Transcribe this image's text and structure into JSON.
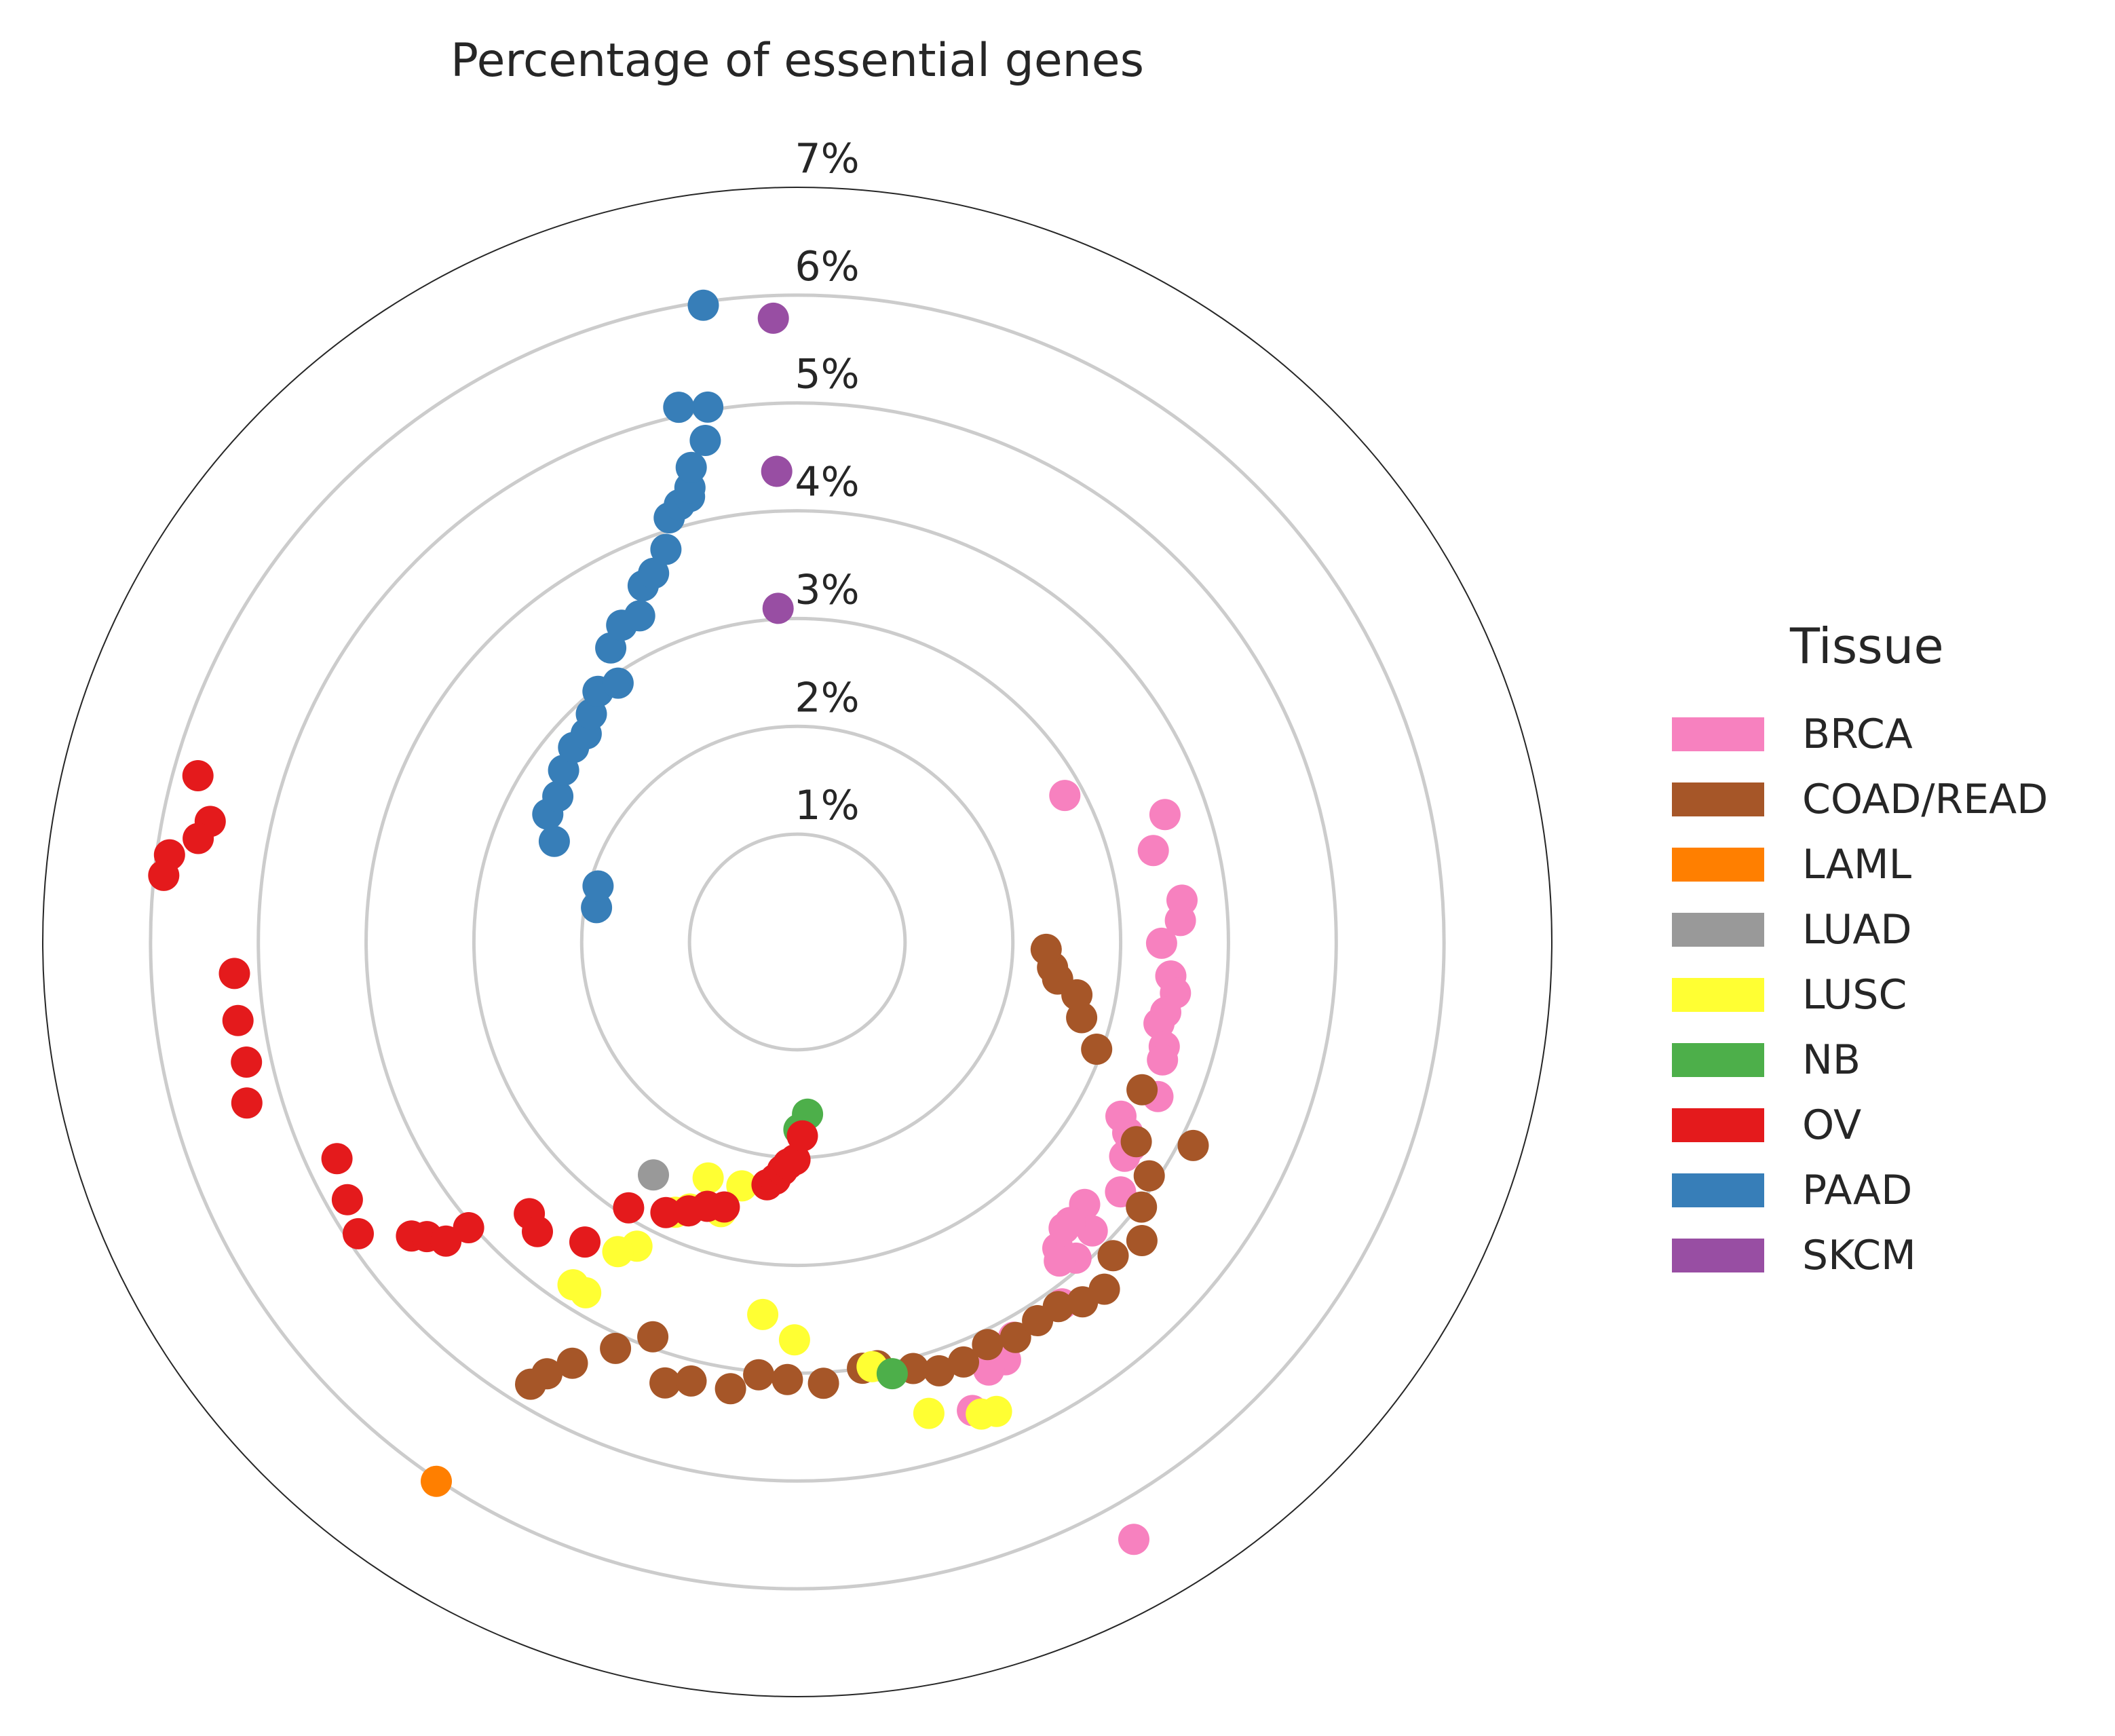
{
  "chart_data": {
    "type": "scatter",
    "projection": "polar",
    "title": "Percentage of essential genes",
    "r_ticks": [
      "1%",
      "2%",
      "3%",
      "4%",
      "5%",
      "6%",
      "7%"
    ],
    "r_max": 7,
    "grid": true,
    "legend": {
      "title": "Tissue",
      "placement": "right",
      "entries": [
        "BRCA",
        "COAD/READ",
        "LAML",
        "LUAD",
        "LUSC",
        "NB",
        "OV",
        "PAAD",
        "SKCM"
      ]
    },
    "colors": {
      "BRCA": "#f781bf",
      "COAD/READ": "#a65628",
      "LAML": "#ff7f00",
      "LUAD": "#999999",
      "LUSC": "#ffff33",
      "NB": "#4daf4a",
      "OV": "#e41a1c",
      "PAAD": "#377eb8",
      "SKCM": "#984ea3"
    },
    "series": [
      {
        "name": "BRCA",
        "theta_deg": [
          61.3,
          70.9,
          75.6,
          83.8,
          86.8,
          90.2,
          95.2,
          97.7,
          100.8,
          102.7,
          105.9,
          107.9,
          113.2,
          118.3,
          120.0,
          121.5,
          123.2,
          127.7,
          132.4,
          134.4,
          135.8,
          138.6,
          139.6,
          140.6,
          137.0,
          143.8,
          151.3,
          153.5,
          155.9,
          159.5,
          150.6
        ],
        "r": [
          2.83,
          3.61,
          3.41,
          3.59,
          3.56,
          3.38,
          3.48,
          3.54,
          3.48,
          3.44,
          3.54,
          3.56,
          3.64,
          3.41,
          3.54,
          3.63,
          3.63,
          3.79,
          3.61,
          3.83,
          3.63,
          3.91,
          3.73,
          3.83,
          3.63,
          4.16,
          4.18,
          4.33,
          4.35,
          4.64,
          6.36
        ]
      },
      {
        "name": "COAD/READ",
        "theta_deg": [
          211.1,
          210.1,
          208.1,
          204.1,
          200.1,
          196.7,
          193.6,
          188.5,
          185.1,
          181.3,
          176.6,
          171.3,
          169.3,
          164.8,
          161.7,
          158.4,
          154.7,
          151.1,
          147.6,
          144.4,
          141.6,
          138.5,
          134.8,
          130.9,
          127.6,
          123.6,
          120.5,
          117.2,
          113.2,
          109.7,
          104.9,
          100.7,
          98.1,
          95.7,
          91.7
        ],
        "r": [
          4.79,
          4.63,
          4.43,
          4.13,
          3.9,
          4.27,
          4.19,
          4.19,
          4.03,
          4.06,
          4.1,
          4.0,
          4.0,
          4.1,
          4.19,
          4.19,
          4.13,
          4.19,
          4.16,
          4.16,
          4.26,
          4.3,
          4.13,
          4.23,
          4.03,
          3.92,
          3.65,
          4.13,
          3.48,
          2.95,
          2.73,
          2.64,
          2.44,
          2.38,
          2.31
        ]
      },
      {
        "name": "LAML",
        "theta_deg": [
          213.8
        ],
        "r": [
          6.02
        ]
      },
      {
        "name": "LUAD",
        "theta_deg": [
          211.7
        ],
        "r": [
          2.54
        ]
      },
      {
        "name": "LUSC",
        "theta_deg": [
          192.8,
          200.7,
          204.3,
          207.8,
          210.1,
          211.1,
          213.2,
          201.9,
          195.8,
          185.3,
          180.4,
          170.0,
          164.4,
          158.7,
          157.0
        ],
        "r": [
          2.32,
          2.34,
          2.75,
          3.19,
          3.32,
          3.8,
          3.8,
          2.67,
          2.6,
          3.47,
          3.69,
          4.0,
          4.54,
          4.7,
          4.73
        ]
      },
      {
        "name": "NB",
        "theta_deg": [
          176.6,
          179.5,
          167.6
        ],
        "r": [
          1.6,
          1.74,
          4.1
        ]
      },
      {
        "name": "OV",
        "theta_deg": [
          285.5,
          281.6,
          279.8,
          277.9,
          276.0,
          266.8,
          262.0,
          257.7,
          253.7,
          244.8,
          240.2,
          236.4,
          232.7,
          231.5,
          229.6,
          229.0,
          224.6,
          221.9,
          215.3,
          212.4,
          205.9,
          202.0,
          198.8,
          195.4,
          187.1,
          185.3,
          183.7,
          182.3,
          180.6,
          178.5
        ],
        "r": [
          5.77,
          5.56,
          5.64,
          5.88,
          5.91,
          5.23,
          5.24,
          5.23,
          5.32,
          4.72,
          4.81,
          4.89,
          4.5,
          4.39,
          4.28,
          4.04,
          3.54,
          3.61,
          3.41,
          2.92,
          2.79,
          2.69,
          2.59,
          2.55,
          2.27,
          2.21,
          2.12,
          2.06,
          2.02,
          1.8
        ]
      },
      {
        "name": "PAAD",
        "theta_deg": [
          279.7,
          285.7,
          292.5,
          297.1,
          301.3,
          306.3,
          311.0,
          314.6,
          317.9,
          321.5,
          325.3,
          327.6,
          331.0,
          334.2,
          336.6,
          338.7,
          341.5,
          343.2,
          344.9,
          346.4,
          346.7,
          347.4,
          349.6,
          350.5,
          351.6,
          347.5
        ],
        "r": [
          1.89,
          1.92,
          2.44,
          2.6,
          2.6,
          2.69,
          2.75,
          2.75,
          2.85,
          2.97,
          2.92,
          3.23,
          3.36,
          3.36,
          3.6,
          3.67,
          3.84,
          4.11,
          4.2,
          4.25,
          4.33,
          4.51,
          4.73,
          5.03,
          5.97,
          5.08
        ]
      },
      {
        "name": "SKCM",
        "theta_deg": [
          356.7,
          357.5,
          357.8
        ],
        "r": [
          3.1,
          4.37,
          5.79
        ]
      }
    ]
  }
}
